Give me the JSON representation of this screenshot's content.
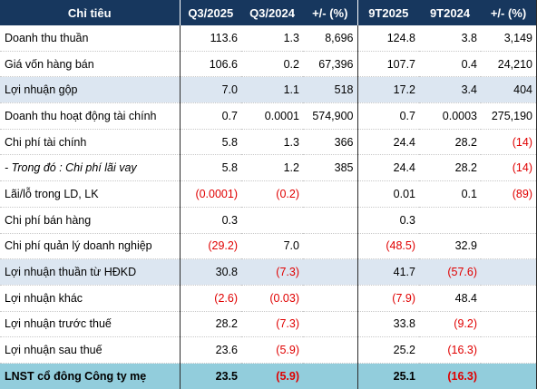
{
  "header": [
    "Chỉ tiêu",
    "Q3/2025",
    "Q3/2024",
    "+/- (%)",
    "9T2025",
    "9T2024",
    "+/- (%)"
  ],
  "rows": [
    {
      "label": "Doanh thu thuần",
      "values": [
        "113.6",
        "1.3",
        "8,696",
        "124.8",
        "3.8",
        "3,149"
      ],
      "style": ""
    },
    {
      "label": "Giá vốn hàng bán",
      "values": [
        "106.6",
        "0.2",
        "67,396",
        "107.7",
        "0.4",
        "24,210"
      ],
      "style": ""
    },
    {
      "label": "Lợi nhuận gộp",
      "values": [
        "7.0",
        "1.1",
        "518",
        "17.2",
        "3.4",
        "404"
      ],
      "style": "hl"
    },
    {
      "label": "Doanh thu hoạt động tài chính",
      "values": [
        "0.7",
        "0.0001",
        "574,900",
        "0.7",
        "0.0003",
        "275,190"
      ],
      "style": ""
    },
    {
      "label": "Chi phí tài chính",
      "values": [
        "5.8",
        "1.3",
        "366",
        "24.4",
        "28.2",
        "(14)"
      ],
      "style": ""
    },
    {
      "label": "- Trong đó : Chi phí lãi vay",
      "values": [
        "5.8",
        "1.2",
        "385",
        "24.4",
        "28.2",
        "(14)"
      ],
      "style": "italic"
    },
    {
      "label": "Lãi/lỗ trong LD, LK",
      "values": [
        "(0.0001)",
        "(0.2)",
        "",
        "0.01",
        "0.1",
        "(89)"
      ],
      "style": ""
    },
    {
      "label": "Chi phí bán hàng",
      "values": [
        "0.3",
        "",
        "",
        "0.3",
        "",
        ""
      ],
      "style": ""
    },
    {
      "label": "Chi phí quản lý doanh nghiệp",
      "values": [
        "(29.2)",
        "7.0",
        "",
        "(48.5)",
        "32.9",
        ""
      ],
      "style": ""
    },
    {
      "label": "Lợi nhuận thuần từ HĐKD",
      "values": [
        "30.8",
        "(7.3)",
        "",
        "41.7",
        "(57.6)",
        ""
      ],
      "style": "hl"
    },
    {
      "label": "Lợi nhuận khác",
      "values": [
        "(2.6)",
        "(0.03)",
        "",
        "(7.9)",
        "48.4",
        ""
      ],
      "style": ""
    },
    {
      "label": "Lợi nhuận trước thuế",
      "values": [
        "28.2",
        "(7.3)",
        "",
        "33.8",
        "(9.2)",
        ""
      ],
      "style": ""
    },
    {
      "label": "Lợi nhuận sau thuế",
      "values": [
        "23.6",
        "(5.9)",
        "",
        "25.2",
        "(16.3)",
        ""
      ],
      "style": ""
    },
    {
      "label": "LNST cổ đông Công ty mẹ",
      "values": [
        "23.5",
        "(5.9)",
        "",
        "25.1",
        "(16.3)",
        ""
      ],
      "style": "total"
    }
  ],
  "colors": {
    "header_bg": "#17375e",
    "highlight_bg": "#dce6f1",
    "total_bg": "#92cddc",
    "negative_text": "#e00000"
  }
}
